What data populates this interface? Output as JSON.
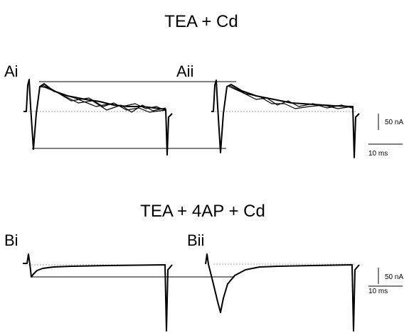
{
  "panels": [
    {
      "title": "TEA + Cd",
      "subpanels": [
        {
          "label": "Ai"
        },
        {
          "label": "Aii"
        }
      ],
      "scale": {
        "current": "50 nA",
        "time": "10 ms"
      }
    },
    {
      "title": "TEA + 4AP + Cd",
      "subpanels": [
        {
          "label": "Bi"
        },
        {
          "label": "Bii"
        }
      ],
      "scale": {
        "current": "50 nA",
        "time": "10 ms"
      }
    }
  ]
}
